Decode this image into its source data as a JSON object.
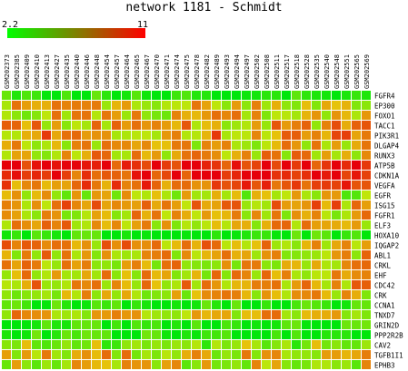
{
  "chart_data": {
    "type": "heatmap",
    "title": "network 1181 - Schmidt",
    "scale": {
      "min_label": "2.2",
      "max_label": "11",
      "min": 2.2,
      "max": 11,
      "low_color": "#00ff00",
      "high_color": "#ff0000"
    },
    "columns": [
      "GSM202373",
      "GSM202385",
      "GSM202409",
      "GSM202410",
      "GSM202413",
      "GSM202427",
      "GSM202435",
      "GSM202440",
      "GSM202446",
      "GSM202448",
      "GSM202454",
      "GSM202457",
      "GSM202464",
      "GSM202465",
      "GSM202467",
      "GSM202470",
      "GSM202471",
      "GSM202474",
      "GSM202475",
      "GSM202478",
      "GSM202482",
      "GSM202489",
      "GSM202493",
      "GSM202494",
      "GSM202497",
      "GSM202502",
      "GSM202508",
      "GSM202511",
      "GSM202517",
      "GSM202518",
      "GSM202528",
      "GSM202535",
      "GSM202540",
      "GSM202548",
      "GSM202551",
      "GSM202565",
      "GSM202569"
    ],
    "rows": [
      "FGFR4",
      "EP300",
      "FOXO1",
      "TACC1",
      "PIK3R1",
      "DLGAP4",
      "RUNX3",
      "ATP5B",
      "CDKN1A",
      "VEGFA",
      "EGFR",
      "ISG15",
      "FGFR1",
      "ELF3",
      "HOXA10",
      "IQGAP2",
      "ABL1",
      "CRKL",
      "EHF",
      "CDC42",
      "CRK",
      "CCNA1",
      "TNXD7",
      "GRIN2D",
      "PPP2R2B",
      "CAV2",
      "TGFB1I1",
      "EPHB3"
    ],
    "row_levels": [
      0.1,
      0.55,
      0.5,
      0.58,
      0.65,
      0.55,
      0.55,
      0.92,
      0.88,
      0.72,
      0.42,
      0.62,
      0.52,
      0.55,
      0.08,
      0.58,
      0.55,
      0.52,
      0.52,
      0.6,
      0.48,
      0.08,
      0.55,
      0.08,
      0.08,
      0.32,
      0.5,
      0.45
    ]
  }
}
